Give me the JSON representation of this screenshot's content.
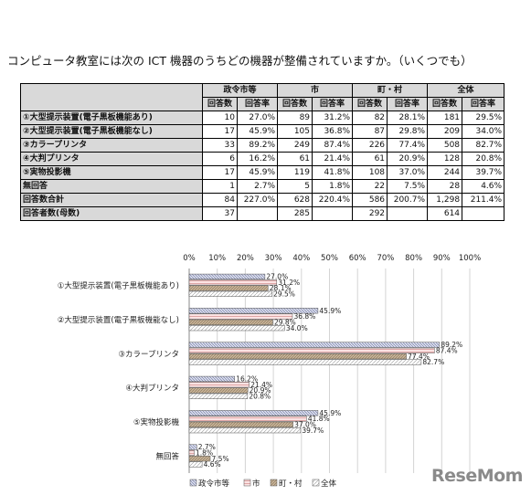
{
  "question": "コンピュータ教室には次の ICT 機器のうちどの機器が整備されていますか。（いくつでも）",
  "table": {
    "groups": [
      "政令市等",
      "市",
      "町・村",
      "全体"
    ],
    "subheaders": [
      "回答数",
      "回答率"
    ],
    "rows": [
      {
        "label": "①大型提示装置(電子黒板機能あり)",
        "cells": [
          "10",
          "27.0%",
          "89",
          "31.2%",
          "82",
          "28.1%",
          "181",
          "29.5%"
        ]
      },
      {
        "label": "②大型提示装置(電子黒板機能なし)",
        "cells": [
          "17",
          "45.9%",
          "105",
          "36.8%",
          "87",
          "29.8%",
          "209",
          "34.0%"
        ]
      },
      {
        "label": "③カラープリンタ",
        "cells": [
          "33",
          "89.2%",
          "249",
          "87.4%",
          "226",
          "77.4%",
          "508",
          "82.7%"
        ]
      },
      {
        "label": "④大判プリンタ",
        "cells": [
          "6",
          "16.2%",
          "61",
          "21.4%",
          "61",
          "20.9%",
          "128",
          "20.8%"
        ]
      },
      {
        "label": "⑤実物投影機",
        "cells": [
          "17",
          "45.9%",
          "119",
          "41.8%",
          "108",
          "37.0%",
          "244",
          "39.7%"
        ]
      },
      {
        "label": "無回答",
        "cells": [
          "1",
          "2.7%",
          "5",
          "1.8%",
          "22",
          "7.5%",
          "28",
          "4.6%"
        ]
      },
      {
        "label": "回答数合計",
        "cells": [
          "84",
          "227.0%",
          "628",
          "220.4%",
          "586",
          "200.7%",
          "1,298",
          "211.4%"
        ]
      },
      {
        "label": "回答者数(母数)",
        "cells": [
          "37",
          "",
          "285",
          "",
          "292",
          "",
          "614",
          ""
        ]
      }
    ]
  },
  "chart_data": {
    "type": "bar",
    "orientation": "horizontal",
    "categories": [
      "①大型提示装置(電子黒板機能あり)",
      "②大型提示装置(電子黒板機能なし)",
      "③カラープリンタ",
      "④大判プリンタ",
      "⑤実物投影機",
      "無回答"
    ],
    "series": [
      {
        "name": "政令市等",
        "values": [
          27.0,
          45.9,
          89.2,
          16.2,
          45.9,
          2.7
        ],
        "labels": [
          "27.0%",
          "45.9%",
          "89.2%",
          "16.2%",
          "45.9%",
          "2.7%"
        ],
        "color": "#c9cde0"
      },
      {
        "name": "市",
        "values": [
          31.2,
          36.8,
          87.4,
          21.4,
          41.8,
          1.8
        ],
        "labels": [
          "31.2%",
          "36.8%",
          "87.4%",
          "21.4%",
          "41.8%",
          "1.8%"
        ],
        "color": "#f2c9c9"
      },
      {
        "name": "町・村",
        "values": [
          28.1,
          29.8,
          77.4,
          20.9,
          37.0,
          7.5
        ],
        "labels": [
          "28.1%",
          "29.8%",
          "77.4%",
          "20.9%",
          "37.0%",
          "7.5%"
        ],
        "color": "#c8b49a"
      },
      {
        "name": "全体",
        "values": [
          29.5,
          34.0,
          82.7,
          20.8,
          39.7,
          4.6
        ],
        "labels": [
          "29.5%",
          "34.0%",
          "82.7%",
          "20.8%",
          "39.7%",
          "4.6%"
        ],
        "color": "#f4f4f4"
      }
    ],
    "xlim": [
      0,
      100
    ],
    "ticks": [
      "0%",
      "10%",
      "20%",
      "30%",
      "40%",
      "50%",
      "60%",
      "70%",
      "80%",
      "90%",
      "100%"
    ],
    "grid": true,
    "legend": "bottom"
  },
  "logo": "ReseMom"
}
